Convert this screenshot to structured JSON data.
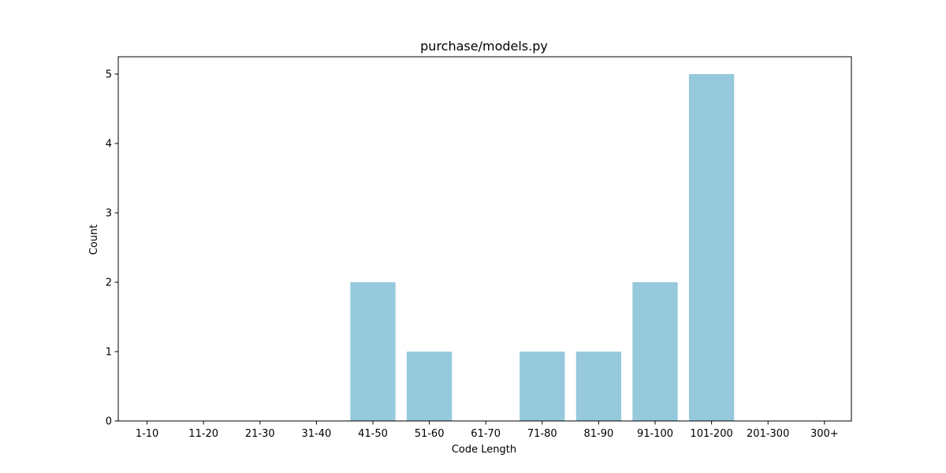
{
  "chart_data": {
    "type": "bar",
    "title": "purchase/models.py",
    "xlabel": "Code Length",
    "ylabel": "Count",
    "categories": [
      "1-10",
      "11-20",
      "21-30",
      "31-40",
      "41-50",
      "51-60",
      "61-70",
      "71-80",
      "81-90",
      "91-100",
      "101-200",
      "201-300",
      "300+"
    ],
    "values": [
      0,
      0,
      0,
      0,
      2,
      1,
      0,
      1,
      1,
      2,
      5,
      0,
      0
    ],
    "ylim": [
      0,
      5.25
    ],
    "yticks": [
      0,
      1,
      2,
      3,
      4,
      5
    ],
    "grid": false,
    "bar_color": "#96c9dc"
  }
}
